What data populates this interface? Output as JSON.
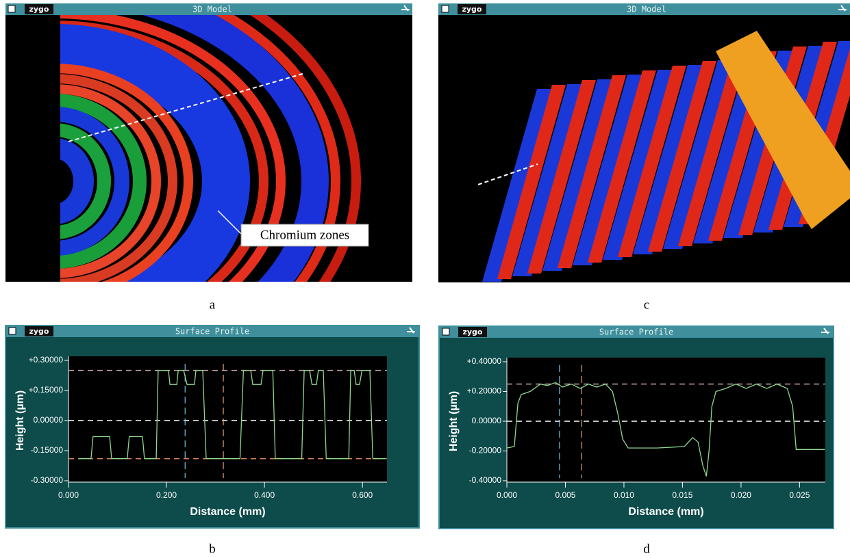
{
  "panels": [
    {
      "logo": "zygo",
      "title": "3D Model",
      "annotation": "Chromium zones",
      "caption": "a"
    },
    {
      "logo": "zygo",
      "title": "3D Model",
      "caption": "c"
    }
  ],
  "chart_data": [
    {
      "type": "line",
      "logo": "zygo",
      "title": "Surface Profile",
      "caption": "b",
      "xlabel": "Distance (mm)",
      "ylabel": "Height (µm)",
      "xlim": [
        0,
        0.65
      ],
      "ylim": [
        -0.3,
        0.3
      ],
      "xticks": [
        {
          "value": 0,
          "label": "0.000"
        },
        {
          "value": 0.2,
          "label": "0.200"
        },
        {
          "value": 0.4,
          "label": "0.400"
        },
        {
          "value": 0.6,
          "label": "0.600"
        }
      ],
      "yticks": [
        {
          "value": 0.3,
          "label": "+0.30000"
        },
        {
          "value": 0.15,
          "label": "+0.15000"
        },
        {
          "value": 0,
          "label": "0.00000"
        },
        {
          "value": -0.15,
          "label": "-0.15000"
        },
        {
          "value": -0.3,
          "label": "-0.30000"
        }
      ],
      "hlines": [
        {
          "value": 0.25,
          "color": "#c9a6a6"
        },
        {
          "value": 0,
          "color": "#ffffff"
        },
        {
          "value": -0.19,
          "color": "#d9805a"
        }
      ],
      "vlines": [
        {
          "value": 0.238,
          "color": "#6cc8e6"
        },
        {
          "value": 0.316,
          "color": "#e6a070"
        }
      ],
      "x": [
        0.021,
        0.046,
        0.05,
        0.084,
        0.088,
        0.12,
        0.124,
        0.151,
        0.155,
        0.179,
        0.183,
        0.204,
        0.207,
        0.221,
        0.224,
        0.232,
        0.235,
        0.242,
        0.257,
        0.26,
        0.274,
        0.281,
        0.35,
        0.357,
        0.372,
        0.376,
        0.393,
        0.397,
        0.417,
        0.422,
        0.476,
        0.481,
        0.492,
        0.497,
        0.506,
        0.51,
        0.52,
        0.526,
        0.572,
        0.576,
        0.583,
        0.587,
        0.594,
        0.599,
        0.615,
        0.621,
        0.646
      ],
      "series": [
        {
          "color": "#8fd88f",
          "values": [
            -0.19,
            -0.19,
            -0.08,
            -0.08,
            -0.19,
            -0.19,
            -0.08,
            -0.08,
            -0.19,
            -0.19,
            0.25,
            0.25,
            0.18,
            0.18,
            0.25,
            0.25,
            0.25,
            0.18,
            0.18,
            0.25,
            0.25,
            -0.19,
            -0.19,
            0.25,
            0.25,
            0.18,
            0.18,
            0.25,
            0.25,
            -0.19,
            -0.19,
            0.25,
            0.25,
            0.18,
            0.18,
            0.25,
            0.25,
            -0.19,
            -0.19,
            0.25,
            0.25,
            0.18,
            0.18,
            0.25,
            0.25,
            -0.19,
            -0.19
          ]
        }
      ]
    },
    {
      "type": "line",
      "logo": "zygo",
      "title": "Surface Profile",
      "caption": "d",
      "xlabel": "Distance (mm)",
      "ylabel": "Height (µm)",
      "xlim": [
        0,
        0.0272
      ],
      "ylim": [
        -0.4,
        0.4
      ],
      "xticks": [
        {
          "value": 0,
          "label": "0.000"
        },
        {
          "value": 0.005,
          "label": "0.005"
        },
        {
          "value": 0.01,
          "label": "0.010"
        },
        {
          "value": 0.015,
          "label": "0.015"
        },
        {
          "value": 0.02,
          "label": "0.020"
        },
        {
          "value": 0.025,
          "label": "0.025"
        }
      ],
      "yticks": [
        {
          "value": 0.4,
          "label": "+0.40000"
        },
        {
          "value": 0.2,
          "label": "+0.20000"
        },
        {
          "value": 0,
          "label": "0.00000"
        },
        {
          "value": -0.2,
          "label": "-0.20000"
        },
        {
          "value": -0.4,
          "label": "-0.40000"
        }
      ],
      "hlines": [
        {
          "value": 0.25,
          "color": "#c9a6a6"
        },
        {
          "value": 0,
          "color": "#ffffff"
        }
      ],
      "vlines": [
        {
          "value": 0.0045,
          "color": "#6cc8e6"
        },
        {
          "value": 0.0064,
          "color": "#e6a070"
        }
      ],
      "x": [
        0,
        0.00064,
        0.00094,
        0.00123,
        0.00199,
        0.00287,
        0.00345,
        0.00416,
        0.00474,
        0.0055,
        0.00627,
        0.00697,
        0.00767,
        0.00843,
        0.00902,
        0.00948,
        0.00989,
        0.01036,
        0.01282,
        0.01516,
        0.01587,
        0.01633,
        0.01674,
        0.01704,
        0.01727,
        0.01751,
        0.01786,
        0.01868,
        0.01956,
        0.02044,
        0.02131,
        0.02219,
        0.02307,
        0.02395,
        0.02441,
        0.02471,
        0.02717
      ],
      "series": [
        {
          "color": "#8fd88f",
          "values": [
            -0.18,
            -0.17,
            0.12,
            0.18,
            0.2,
            0.25,
            0.24,
            0.26,
            0.23,
            0.25,
            0.22,
            0.25,
            0.23,
            0.25,
            0.2,
            0.05,
            -0.12,
            -0.18,
            -0.18,
            -0.17,
            -0.11,
            -0.14,
            -0.3,
            -0.37,
            -0.2,
            0.1,
            0.2,
            0.22,
            0.25,
            0.22,
            0.25,
            0.22,
            0.25,
            0.22,
            0.1,
            -0.19,
            -0.19
          ]
        }
      ]
    }
  ]
}
